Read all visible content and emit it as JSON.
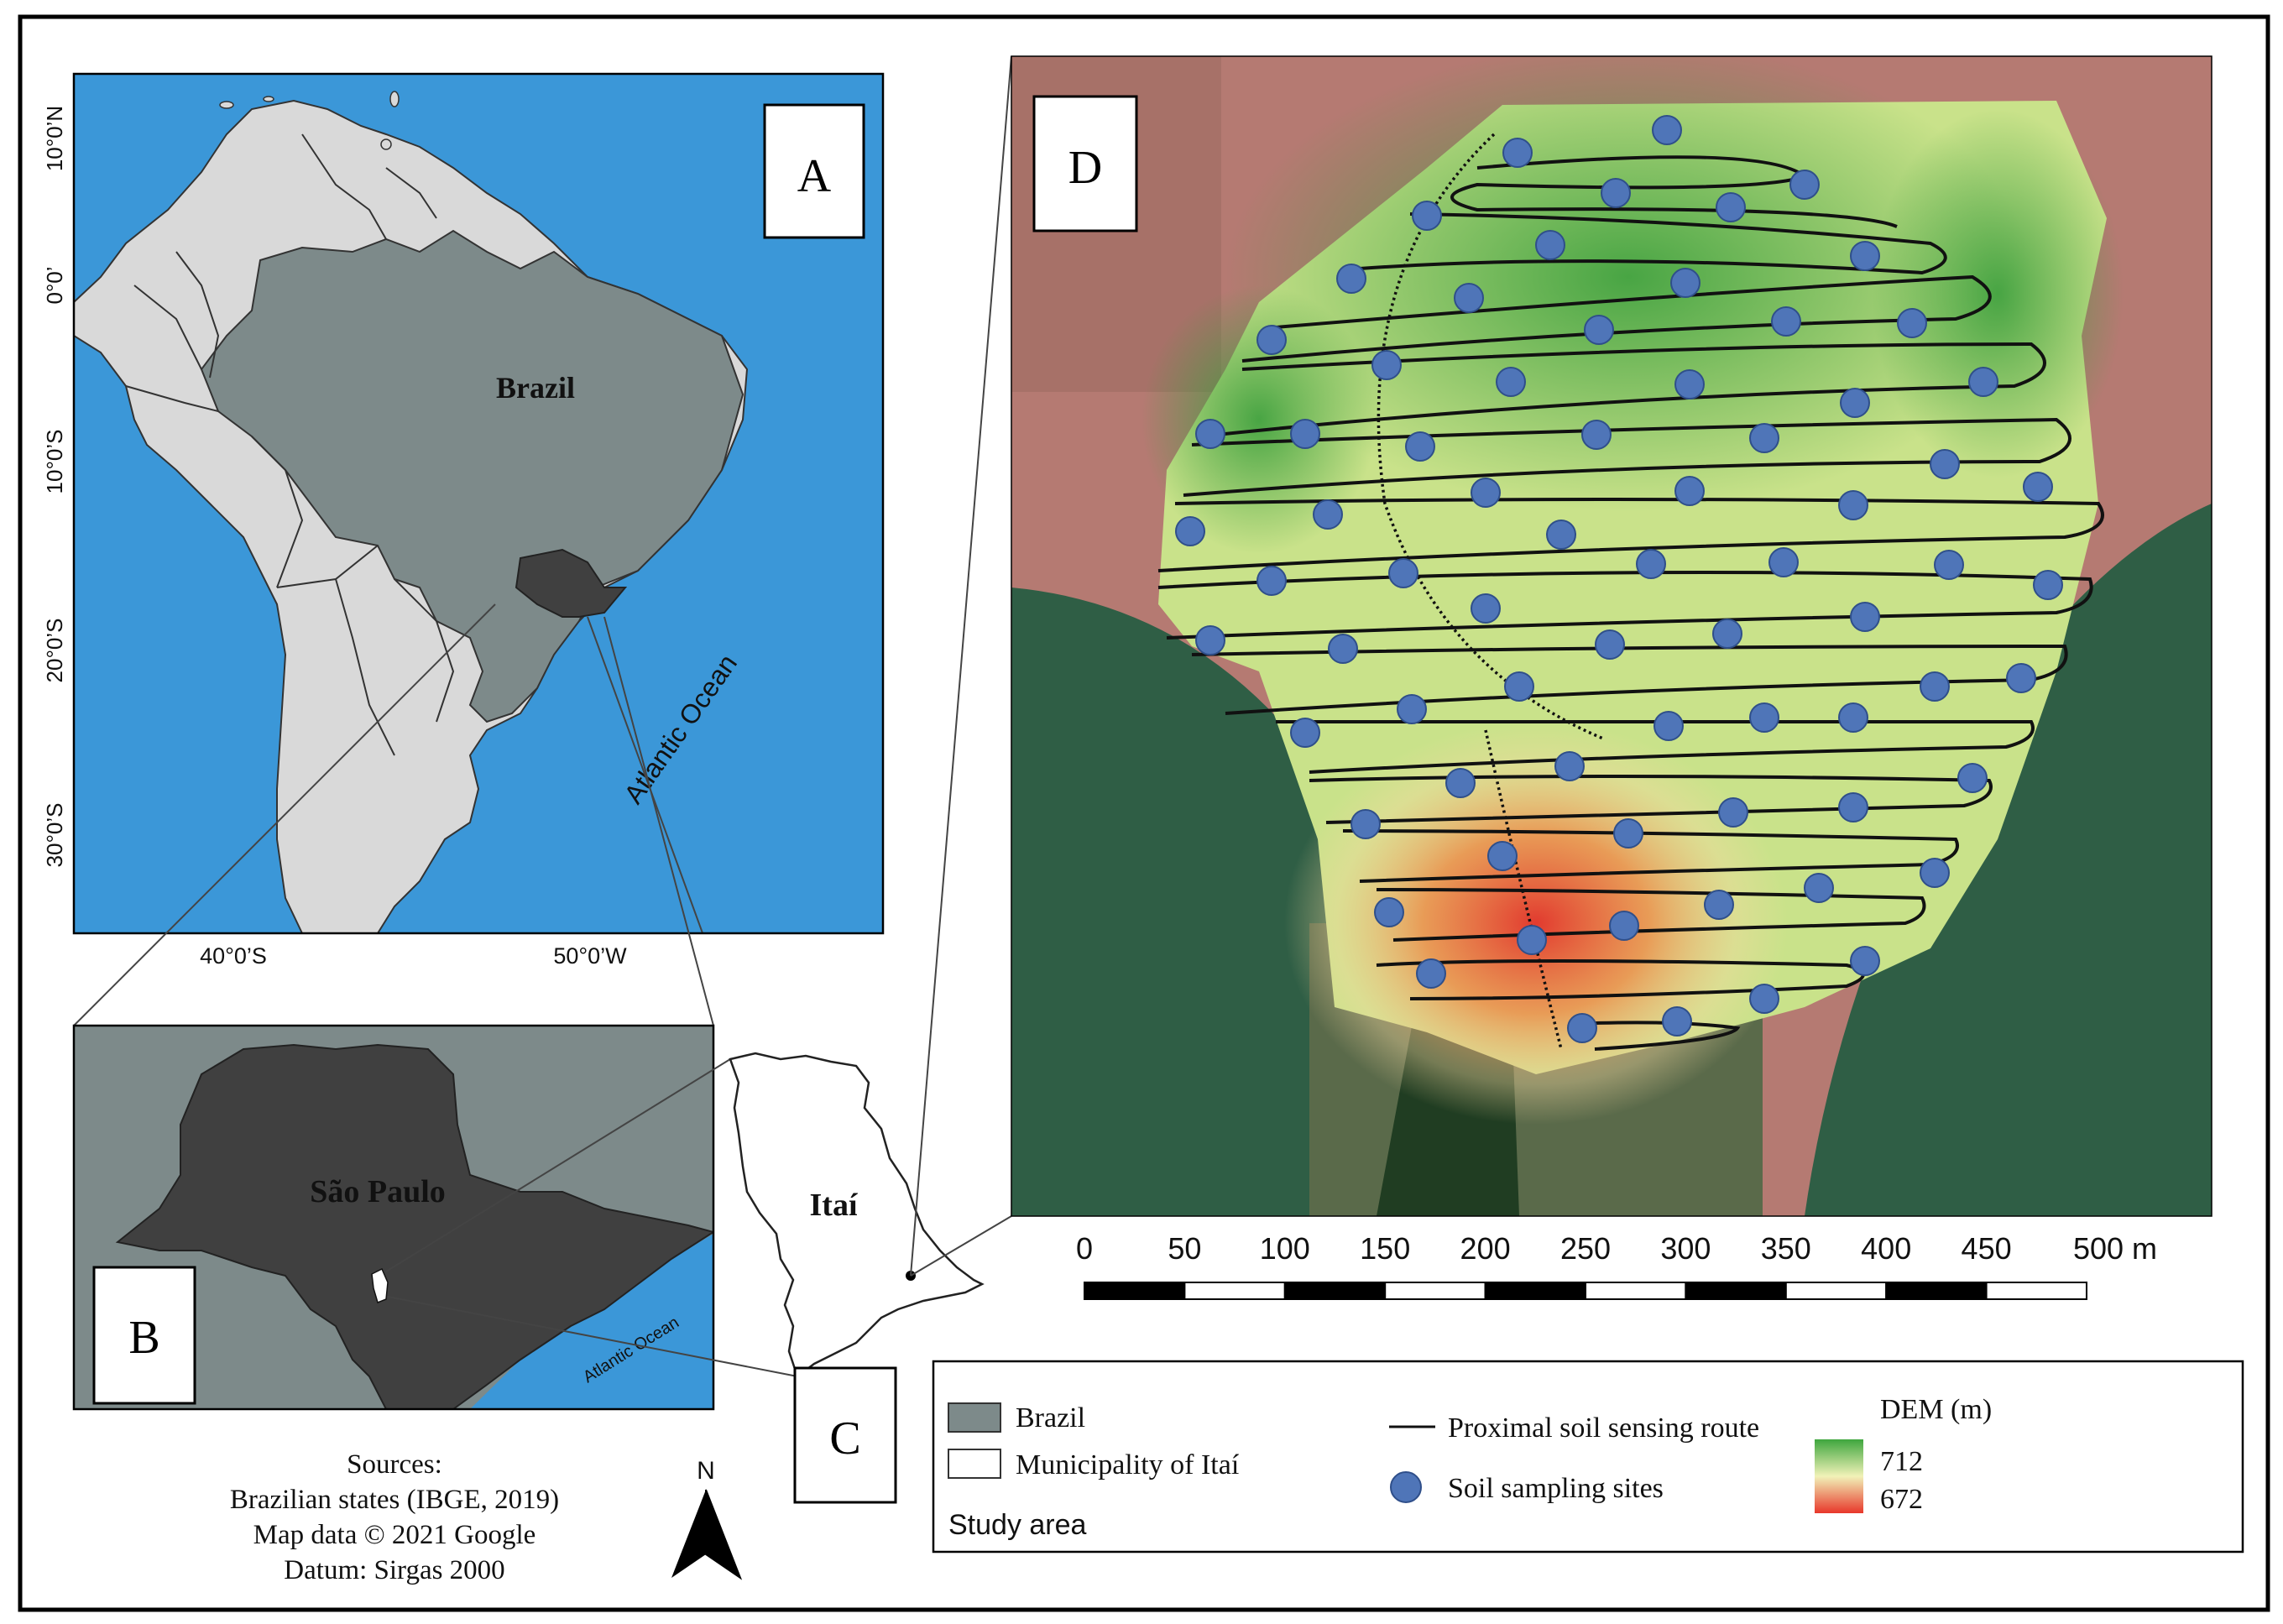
{
  "panels": {
    "a": {
      "letter": "A",
      "country_label": "Brazil",
      "ocean_label": "Atlantic Ocean",
      "lat_ticks": [
        "10°0’N",
        "0°0’",
        "10°0’S",
        "20°0’S",
        "30°0’S"
      ],
      "lon_ticks": [
        "40°0’S",
        "50°0’W"
      ]
    },
    "b": {
      "letter": "B",
      "state_label": "São Paulo",
      "ocean_label": "Atlantic Ocean"
    },
    "c": {
      "letter": "C",
      "municipality_label": "Itaí"
    },
    "d": {
      "letter": "D"
    }
  },
  "scale_bar": {
    "labels": [
      "0",
      "50",
      "100",
      "150",
      "200",
      "250",
      "300",
      "350",
      "400",
      "450",
      "500 m"
    ]
  },
  "sources": {
    "heading": "Sources:",
    "lines": [
      "Brazilian states (IBGE, 2019)",
      "Map data © 2021 Google",
      "Datum: Sirgas 2000"
    ]
  },
  "north_arrow": {
    "label": "N"
  },
  "legend": {
    "brazil": "Brazil",
    "municipality": "Municipality of Itaí",
    "study_area": "Study area",
    "route": "Proximal soil sensing route",
    "sites": "Soil sampling sites",
    "dem_title": "DEM (m)",
    "dem_high": "712",
    "dem_low": "672"
  },
  "colors": {
    "ocean": "#3b97d8",
    "land": "#d9d9d9",
    "brazil": "#7d8a8a",
    "sao_paulo": "#404040",
    "dem_high": "#3ea63e",
    "dem_mid": "#f1f2b8",
    "dem_low": "#e8372a",
    "site": "#4f75b8",
    "soil": "#b57a72",
    "crop": "#2f5e45"
  }
}
